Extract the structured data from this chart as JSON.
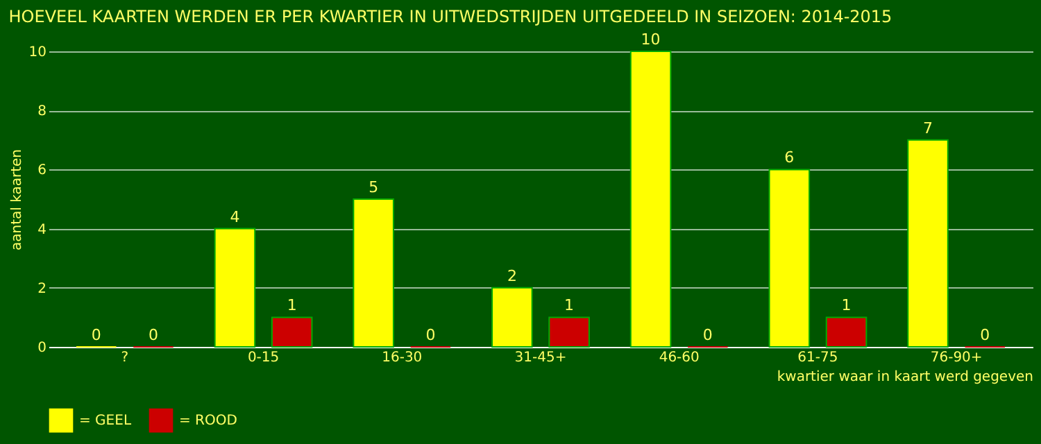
{
  "chart_data": {
    "type": "bar",
    "title": "HOEVEEL KAARTEN WERDEN ER PER KWARTIER IN UITWEDSTRIJDEN UITGEDEELD IN SEIZOEN: 2014-2015",
    "xlabel": "kwartier waar in kaart werd gegeven",
    "ylabel": "aantal kaarten",
    "categories": [
      "?",
      "0-15",
      "16-30",
      "31-45+",
      "46-60",
      "61-75",
      "76-90+"
    ],
    "series": [
      {
        "name": "= GEEL",
        "color": "#ffff00",
        "values": [
          0,
          4,
          5,
          2,
          10,
          6,
          7
        ]
      },
      {
        "name": "= ROOD",
        "color": "#cc0000",
        "values": [
          0,
          1,
          0,
          1,
          0,
          1,
          0
        ]
      }
    ],
    "ylim": [
      0,
      10
    ],
    "yticks": [
      0,
      2,
      4,
      6,
      8,
      10
    ],
    "grid": "y",
    "legend": "bottom",
    "data_labels": true
  }
}
